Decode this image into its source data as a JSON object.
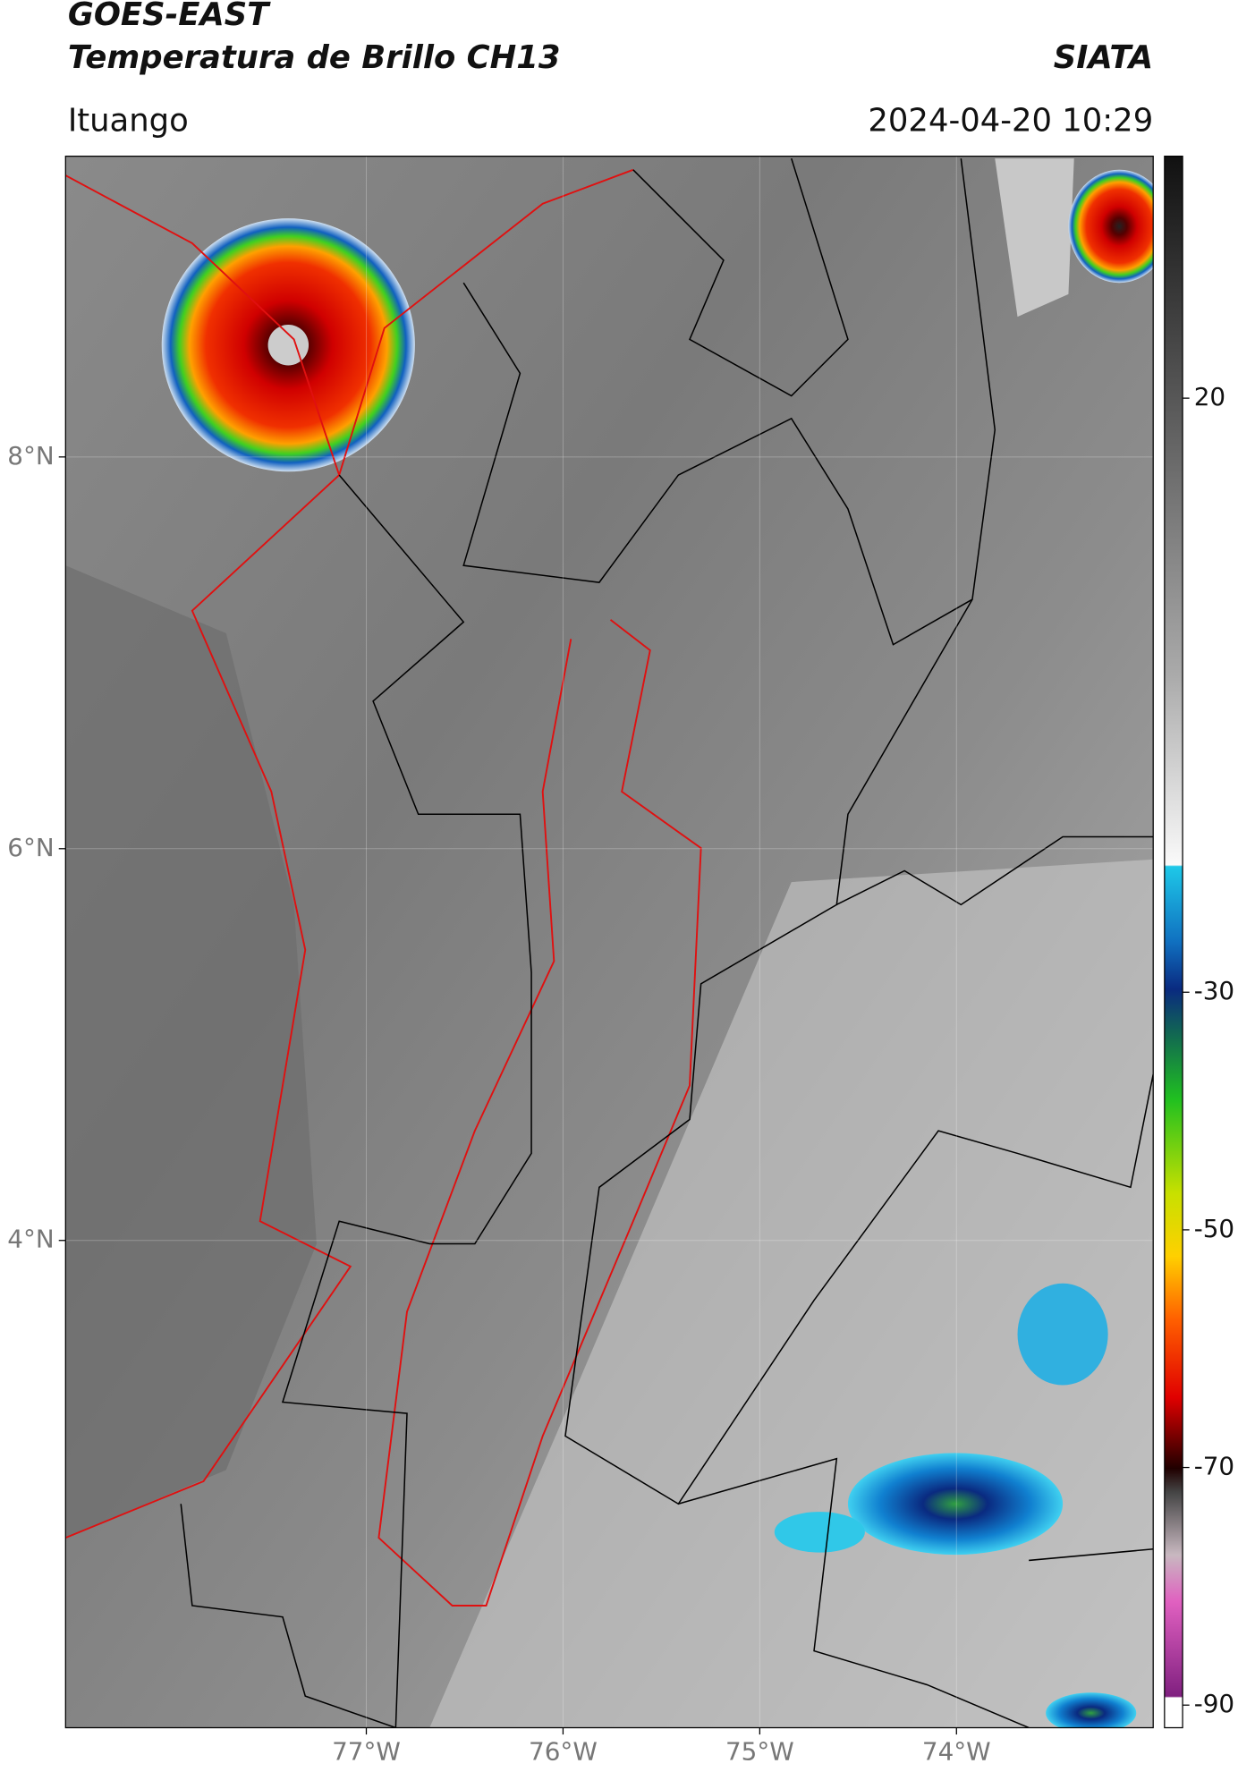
{
  "header": {
    "title": "GOES-EAST",
    "subtitle": "Temperatura de Brillo CH13",
    "brand": "SIATA",
    "location": "Ituango",
    "datetime": "2024-04-20 10:29"
  },
  "map": {
    "lat_ticks": [
      {
        "value": 8,
        "label": "8°N"
      },
      {
        "value": 6,
        "label": "6°N"
      },
      {
        "value": 4,
        "label": "4°N"
      }
    ],
    "lon_ticks": [
      {
        "value": -77,
        "label": "77°W"
      },
      {
        "value": -76,
        "label": "76°W"
      },
      {
        "value": -75,
        "label": "75°W"
      },
      {
        "value": -74,
        "label": "74°W"
      }
    ]
  },
  "colorbar": {
    "ticks": [
      20,
      -30,
      -50,
      -70,
      -90
    ]
  }
}
